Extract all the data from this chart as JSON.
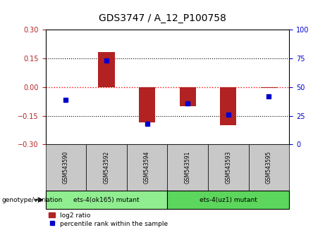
{
  "title": "GDS3747 / A_12_P100758",
  "samples": [
    "GSM543590",
    "GSM543592",
    "GSM543594",
    "GSM543591",
    "GSM543593",
    "GSM543595"
  ],
  "log2_ratio": [
    0.0,
    0.185,
    -0.185,
    -0.1,
    -0.2,
    -0.005
  ],
  "percentile_rank": [
    39,
    73,
    18,
    36,
    26,
    42
  ],
  "genotype_groups": [
    {
      "label": "ets-4(ok165) mutant",
      "color": "#90EE90",
      "start": 0,
      "end": 3
    },
    {
      "label": "ets-4(uz1) mutant",
      "color": "#5CD65C",
      "start": 3,
      "end": 6
    }
  ],
  "ylim_left": [
    -0.3,
    0.3
  ],
  "ylim_right": [
    0,
    100
  ],
  "yticks_left": [
    -0.3,
    -0.15,
    0,
    0.15,
    0.3
  ],
  "yticks_right": [
    0,
    25,
    50,
    75,
    100
  ],
  "bar_color": "#B22222",
  "scatter_color": "#0000CD",
  "hline_color": "#FF0000",
  "sample_box_color": "#C8C8C8",
  "genotype_label": "genotype/variation",
  "legend_items": [
    "log2 ratio",
    "percentile rank within the sample"
  ],
  "bar_width": 0.4
}
